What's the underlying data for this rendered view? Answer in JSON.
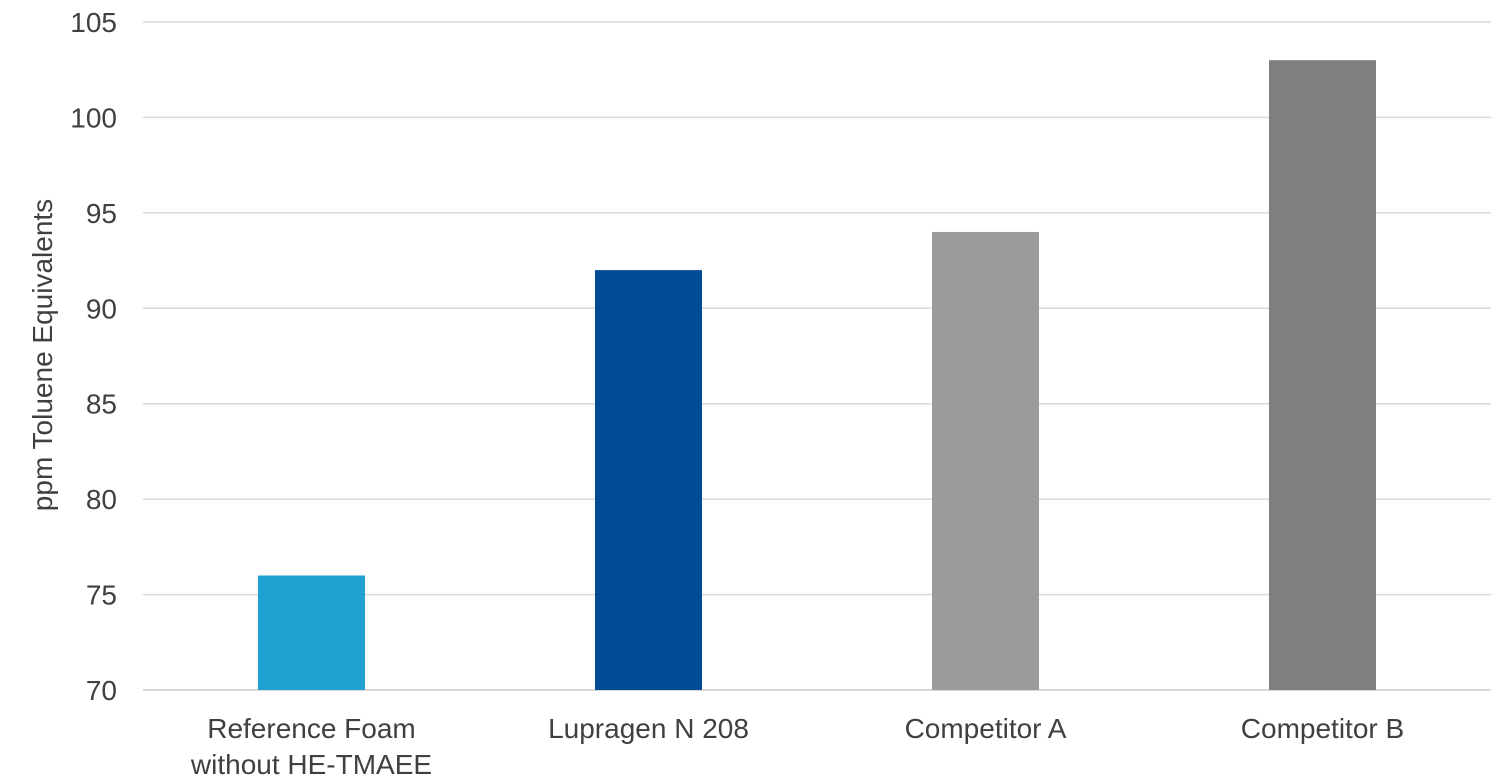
{
  "chart_data": {
    "type": "bar",
    "title": "",
    "xlabel": "",
    "ylabel": "ppm Toluene Equivalents",
    "ylim": [
      70,
      105
    ],
    "yticks": [
      70,
      75,
      80,
      85,
      90,
      95,
      100,
      105
    ],
    "grid": true,
    "legend": "none",
    "categories": [
      [
        "Reference Foam",
        "without HE-TMAEE"
      ],
      [
        "Lupragen N 208"
      ],
      [
        "Competitor A"
      ],
      [
        "Competitor B"
      ]
    ],
    "values": [
      76,
      92,
      94,
      103
    ],
    "colors": [
      "#21A0D2",
      "#004A96",
      "#9B9B9B",
      "#7F7F7F"
    ]
  }
}
